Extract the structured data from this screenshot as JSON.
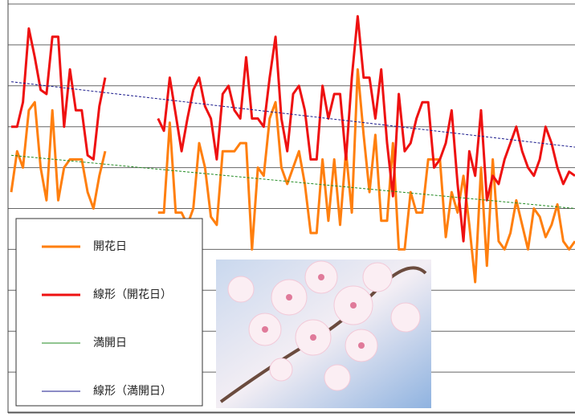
{
  "chart_data": {
    "type": "line",
    "xlim": [
      0,
      96
    ],
    "ylim": [
      0,
      10
    ],
    "yticks": [
      0,
      1,
      2,
      3,
      4,
      5,
      6,
      7,
      8,
      9,
      10
    ],
    "grid": true,
    "series": [
      {
        "name": "開花日",
        "color": "#ff7f0e",
        "width": 3,
        "values": [
          5.4,
          6.4,
          6.0,
          7.4,
          7.6,
          6.0,
          5.2,
          7.4,
          5.2,
          6.0,
          6.2,
          6.2,
          6.2,
          5.4,
          5.0,
          5.8,
          6.4,
          null,
          null,
          null,
          null,
          null,
          null,
          null,
          null,
          4.9,
          4.9,
          7.1,
          4.9,
          4.9,
          4.6,
          5.0,
          6.6,
          6.0,
          4.8,
          4.6,
          6.4,
          6.4,
          6.4,
          6.6,
          6.6,
          4.0,
          6.0,
          5.8,
          7.2,
          7.6,
          6.0,
          5.6,
          6.0,
          6.4,
          5.6,
          4.4,
          4.4,
          6.2,
          4.7,
          6.2,
          4.6,
          6.4,
          4.9,
          8.4,
          6.8,
          5.4,
          6.8,
          4.7,
          4.7,
          6.6,
          4.0,
          4.0,
          5.4,
          4.9,
          4.9,
          6.2,
          6.2,
          6.2,
          4.3,
          5.4,
          4.9,
          5.8,
          4.6,
          3.2,
          6.0,
          3.6,
          6.2,
          4.2,
          4.0,
          4.4,
          5.2,
          4.6,
          4.0,
          5.0,
          4.8,
          4.3,
          4.6,
          5.1,
          4.2,
          4.0,
          4.2
        ]
      },
      {
        "name": "線形（開花日）",
        "color": "#ee1111",
        "width": 3,
        "values": [
          7.0,
          7.0,
          7.6,
          9.4,
          8.7,
          7.9,
          7.8,
          9.2,
          9.2,
          7.0,
          8.4,
          7.4,
          7.4,
          6.3,
          6.2,
          7.5,
          8.2,
          null,
          null,
          null,
          null,
          null,
          null,
          null,
          null,
          7.2,
          6.9,
          8.2,
          7.3,
          6.4,
          7.2,
          7.9,
          8.2,
          7.5,
          7.2,
          6.2,
          7.8,
          8.0,
          7.4,
          7.2,
          8.7,
          7.2,
          7.2,
          7.0,
          8.2,
          9.2,
          7.2,
          6.4,
          7.8,
          8.0,
          7.4,
          6.2,
          6.2,
          8.0,
          7.2,
          7.8,
          7.8,
          6.2,
          8.2,
          9.7,
          8.2,
          8.2,
          7.2,
          8.4,
          6.6,
          5.3,
          7.8,
          6.4,
          6.6,
          7.2,
          7.6,
          7.6,
          6.0,
          6.2,
          6.6,
          7.4,
          5.6,
          4.2,
          6.4,
          5.8,
          7.4,
          5.2,
          5.8,
          5.6,
          6.2,
          6.6,
          7.0,
          6.4,
          6.0,
          5.8,
          6.2,
          7.0,
          6.6,
          6.0,
          5.6,
          5.9,
          5.8
        ]
      },
      {
        "name": "満開日",
        "color": "#228b22",
        "width": 1,
        "dash": true,
        "x": [
          0,
          96
        ],
        "values": [
          6.3,
          5.0
        ]
      },
      {
        "name": "線形（満開日）",
        "color": "#1a1a8c",
        "width": 1,
        "dash": true,
        "x": [
          0,
          96
        ],
        "values": [
          8.1,
          6.5
        ]
      }
    ]
  }
}
